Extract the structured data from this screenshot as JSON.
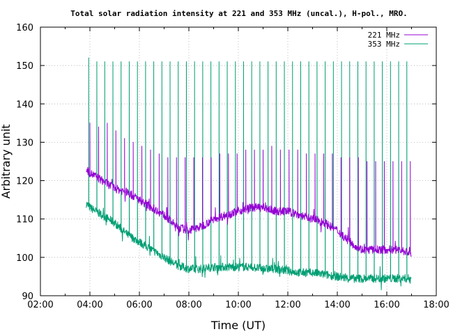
{
  "chart_data": {
    "type": "line",
    "title": "Total solar radiation intensity at 221 and 353 MHz (uncal.), H-pol., MRO.",
    "xlabel": "Time (UT)",
    "ylabel": "Arbitrary unit",
    "xlim": [
      2,
      18
    ],
    "ylim": [
      90,
      160
    ],
    "x_ticks": [
      2,
      4,
      6,
      8,
      10,
      12,
      14,
      16,
      18
    ],
    "x_tick_labels": [
      "02:00",
      "04:00",
      "06:00",
      "08:00",
      "10:00",
      "12:00",
      "14:00",
      "16:00",
      "18:00"
    ],
    "y_ticks": [
      90,
      100,
      110,
      120,
      130,
      140,
      150,
      160
    ],
    "y_tick_labels": [
      "90",
      "100",
      "110",
      "120",
      "130",
      "140",
      "150",
      "160"
    ],
    "grid": true,
    "legend_position": "top-right",
    "series": [
      {
        "name": "221 MHz",
        "color": "#9400d3",
        "baseline": {
          "x": [
            3.85,
            4.0,
            4.5,
            5.0,
            5.5,
            6.0,
            6.5,
            7.0,
            7.5,
            8.0,
            8.5,
            9.0,
            9.5,
            10.0,
            10.5,
            11.0,
            11.5,
            12.0,
            12.5,
            13.0,
            13.5,
            14.0,
            14.5,
            15.0,
            15.5,
            16.0,
            16.5,
            17.0
          ],
          "y": [
            123,
            122,
            120,
            118,
            117,
            115,
            113,
            111,
            108,
            107,
            108,
            110,
            111,
            112,
            113,
            113,
            112,
            112,
            111,
            110,
            109,
            107,
            104,
            102,
            102,
            102,
            102,
            101
          ]
        },
        "spikes": {
          "x": [
            4.0,
            4.35,
            4.7,
            5.05,
            5.4,
            5.75,
            6.1,
            6.45,
            6.8,
            7.15,
            7.5,
            7.85,
            8.2,
            8.55,
            8.9,
            9.25,
            9.6,
            9.95,
            10.3,
            10.65,
            11.0,
            11.35,
            11.7,
            12.05,
            12.4,
            12.75,
            13.1,
            13.45,
            13.8,
            14.15,
            14.5,
            14.85,
            15.2,
            15.55,
            15.9,
            16.25,
            16.6,
            16.95
          ],
          "y": [
            135,
            134,
            135,
            133,
            131,
            130,
            129,
            128,
            127,
            126,
            126,
            126,
            126,
            126,
            126,
            127,
            127,
            127,
            128,
            128,
            128,
            129,
            128,
            128,
            128,
            127,
            127,
            127,
            127,
            126,
            126,
            126,
            125,
            125,
            125,
            125,
            125,
            125
          ]
        }
      },
      {
        "name": "353 MHz",
        "color": "#009e73",
        "baseline": {
          "x": [
            3.85,
            4.0,
            4.5,
            5.0,
            5.5,
            6.0,
            6.5,
            7.0,
            7.5,
            8.0,
            8.5,
            9.0,
            9.5,
            10.0,
            10.5,
            11.0,
            11.5,
            12.0,
            12.5,
            13.0,
            13.5,
            14.0,
            14.5,
            15.0,
            15.5,
            16.0,
            16.5,
            17.0
          ],
          "y": [
            114,
            113,
            111,
            109,
            106,
            104,
            102,
            100,
            98,
            97,
            97,
            97.5,
            97.5,
            97.5,
            97.5,
            97,
            97,
            96.5,
            96,
            96,
            95.5,
            95,
            94.5,
            94.5,
            94.5,
            94.5,
            94.5,
            94.5
          ]
        },
        "spikes": {
          "x": [
            3.95,
            4.28,
            4.6,
            4.93,
            5.26,
            5.59,
            5.92,
            6.25,
            6.58,
            6.91,
            7.24,
            7.57,
            7.9,
            8.23,
            8.56,
            8.89,
            9.22,
            9.55,
            9.88,
            10.21,
            10.54,
            10.87,
            11.2,
            11.53,
            11.86,
            12.19,
            12.52,
            12.85,
            13.18,
            13.51,
            13.84,
            14.17,
            14.5,
            14.83,
            15.16,
            15.49,
            15.82,
            16.15,
            16.48,
            16.81,
            17.05
          ],
          "y": [
            152,
            151,
            151,
            151,
            151,
            151,
            151,
            151,
            151,
            151,
            151,
            151,
            151,
            151,
            151,
            151,
            151,
            151,
            151,
            151,
            151,
            151,
            151,
            151,
            151,
            151,
            151,
            151,
            151,
            151,
            151,
            151,
            151,
            151,
            151,
            151,
            151,
            151,
            151,
            151,
            151
          ]
        }
      }
    ]
  }
}
